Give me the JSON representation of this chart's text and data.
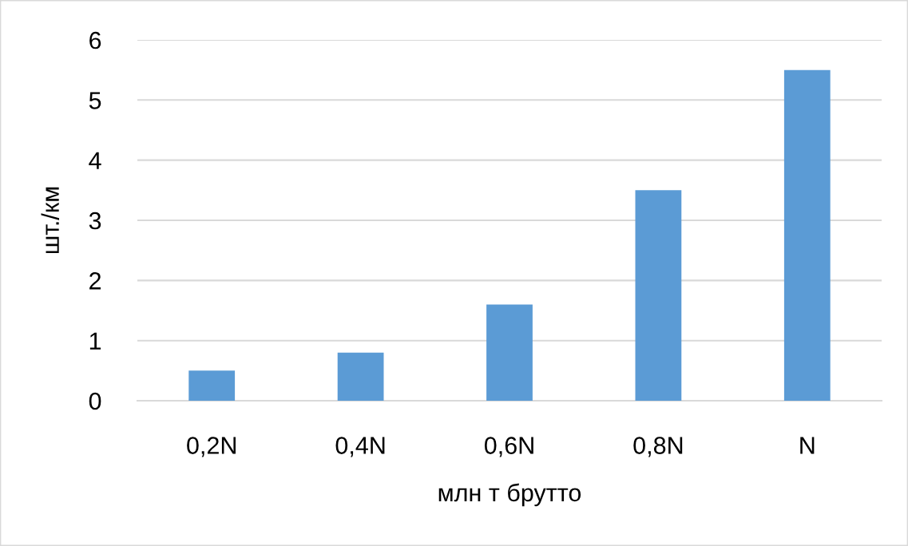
{
  "chart_data": {
    "type": "bar",
    "xlabel": "млн т брутто",
    "ylabel": "шт./км",
    "categories": [
      "0,2N",
      "0,4N",
      "0,6N",
      "0,8N",
      "N"
    ],
    "values": [
      0.5,
      0.8,
      1.6,
      3.5,
      5.5
    ],
    "color": "#5b9bd5",
    "ylim": [
      0,
      6
    ],
    "yticks": [
      0,
      1,
      2,
      3,
      4,
      5,
      6
    ],
    "grid": "y"
  }
}
